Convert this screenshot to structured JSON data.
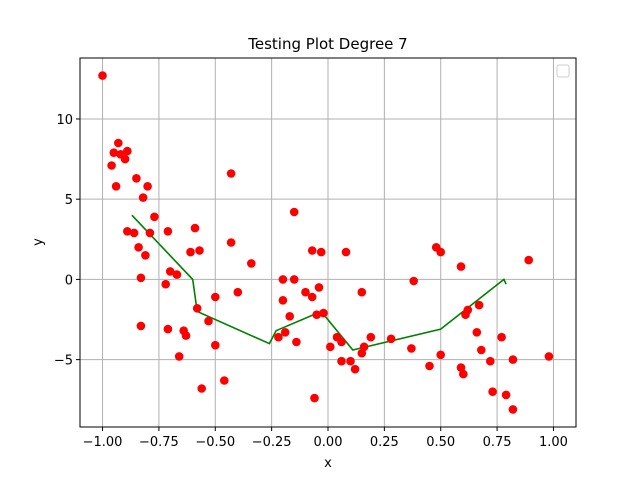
{
  "chart_data": {
    "type": "scatter",
    "title": "Testing Plot Degree 7",
    "xlabel": "x",
    "ylabel": "y",
    "xlim": [
      -1.1,
      1.1
    ],
    "ylim": [
      -9.2,
      13.8
    ],
    "grid": true,
    "legend": "top-right (empty)",
    "xticks": [
      -1.0,
      -0.75,
      -0.5,
      -0.25,
      0.0,
      0.25,
      0.5,
      0.75,
      1.0
    ],
    "xtick_labels": [
      "−1.00",
      "−0.75",
      "−0.50",
      "−0.25",
      "0.00",
      "0.25",
      "0.50",
      "0.75",
      "1.00"
    ],
    "yticks": [
      -5,
      0,
      5,
      10
    ],
    "ytick_labels": [
      "−5",
      "0",
      "5",
      "10"
    ],
    "colors": {
      "points": "#ff0000",
      "line": "#008000",
      "grid": "#b0b0b0"
    },
    "scatter_points": [
      [
        -1.0,
        12.7
      ],
      [
        -0.96,
        7.1
      ],
      [
        -0.95,
        7.9
      ],
      [
        -0.94,
        5.8
      ],
      [
        -0.93,
        8.5
      ],
      [
        -0.92,
        7.8
      ],
      [
        -0.9,
        7.5
      ],
      [
        -0.89,
        8.0
      ],
      [
        -0.89,
        3.0
      ],
      [
        -0.86,
        2.9
      ],
      [
        -0.85,
        6.3
      ],
      [
        -0.84,
        2.0
      ],
      [
        -0.83,
        0.1
      ],
      [
        -0.83,
        -2.9
      ],
      [
        -0.82,
        5.1
      ],
      [
        -0.81,
        1.5
      ],
      [
        -0.8,
        5.8
      ],
      [
        -0.79,
        2.9
      ],
      [
        -0.77,
        3.9
      ],
      [
        -0.72,
        -0.3
      ],
      [
        -0.71,
        3.0
      ],
      [
        -0.71,
        -3.1
      ],
      [
        -0.7,
        0.5
      ],
      [
        -0.67,
        0.3
      ],
      [
        -0.66,
        -4.8
      ],
      [
        -0.64,
        -3.2
      ],
      [
        -0.63,
        -3.5
      ],
      [
        -0.61,
        1.7
      ],
      [
        -0.59,
        3.2
      ],
      [
        -0.58,
        -1.8
      ],
      [
        -0.57,
        1.8
      ],
      [
        -0.56,
        -6.8
      ],
      [
        -0.53,
        -2.6
      ],
      [
        -0.5,
        -1.1
      ],
      [
        -0.5,
        -4.1
      ],
      [
        -0.46,
        -6.3
      ],
      [
        -0.43,
        6.6
      ],
      [
        -0.43,
        2.3
      ],
      [
        -0.4,
        -0.8
      ],
      [
        -0.34,
        1.0
      ],
      [
        -0.22,
        -3.6
      ],
      [
        -0.2,
        0.0
      ],
      [
        -0.2,
        -1.3
      ],
      [
        -0.19,
        -3.3
      ],
      [
        -0.17,
        -2.3
      ],
      [
        -0.15,
        4.2
      ],
      [
        -0.15,
        0.0
      ],
      [
        -0.14,
        -3.9
      ],
      [
        -0.1,
        -0.8
      ],
      [
        -0.07,
        -1.1
      ],
      [
        -0.07,
        1.8
      ],
      [
        -0.06,
        -7.4
      ],
      [
        -0.05,
        -2.2
      ],
      [
        -0.04,
        -0.5
      ],
      [
        -0.03,
        1.7
      ],
      [
        -0.02,
        -2.1
      ],
      [
        0.01,
        -4.2
      ],
      [
        0.04,
        -3.6
      ],
      [
        0.06,
        -5.1
      ],
      [
        0.06,
        -3.9
      ],
      [
        0.08,
        1.7
      ],
      [
        0.1,
        -5.1
      ],
      [
        0.12,
        -5.6
      ],
      [
        0.15,
        -4.6
      ],
      [
        0.15,
        -0.8
      ],
      [
        0.16,
        -4.2
      ],
      [
        0.19,
        -3.6
      ],
      [
        0.28,
        -3.7
      ],
      [
        0.37,
        -4.3
      ],
      [
        0.38,
        -0.1
      ],
      [
        0.45,
        -5.4
      ],
      [
        0.48,
        2.0
      ],
      [
        0.5,
        1.7
      ],
      [
        0.5,
        -4.7
      ],
      [
        0.59,
        0.8
      ],
      [
        0.59,
        -5.5
      ],
      [
        0.6,
        -5.9
      ],
      [
        0.61,
        -2.2
      ],
      [
        0.62,
        -1.9
      ],
      [
        0.66,
        -3.3
      ],
      [
        0.67,
        -1.6
      ],
      [
        0.68,
        -4.4
      ],
      [
        0.72,
        -5.1
      ],
      [
        0.73,
        -7.0
      ],
      [
        0.77,
        -3.6
      ],
      [
        0.79,
        -7.2
      ],
      [
        0.82,
        -8.1
      ],
      [
        0.82,
        -5.0
      ],
      [
        0.89,
        1.2
      ],
      [
        0.98,
        -4.8
      ]
    ],
    "series": [
      {
        "values": [
          [
            -0.87,
            4.0
          ],
          [
            -0.6,
            0.0
          ],
          [
            -0.58,
            -2.0
          ],
          [
            -0.26,
            -4.0
          ],
          [
            -0.23,
            -3.2
          ],
          [
            -0.03,
            -2.0
          ],
          [
            0.11,
            -4.4
          ],
          [
            0.5,
            -3.1
          ],
          [
            0.78,
            0.0
          ],
          [
            0.79,
            -0.3
          ]
        ]
      }
    ]
  }
}
